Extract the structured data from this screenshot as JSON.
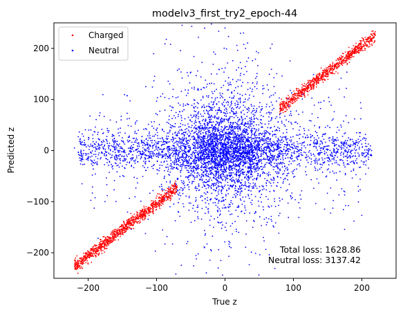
{
  "chart_data": {
    "type": "scatter",
    "title": "modelv3_first_try2_epoch-44",
    "xlabel": "True z",
    "ylabel": "Predicted z",
    "xlim": [
      -250,
      250
    ],
    "ylim": [
      -250,
      250
    ],
    "xticks": [
      -200,
      -100,
      0,
      100,
      200
    ],
    "yticks": [
      -200,
      -100,
      0,
      100,
      200
    ],
    "grid": false,
    "legend": {
      "placement": "top-left",
      "entries": [
        "Charged",
        "Neutral"
      ]
    },
    "series": [
      {
        "name": "Charged",
        "color": "#ff0000",
        "marker": "dot",
        "description_points": [
          [
            -215,
            -240
          ],
          [
            -200,
            -222
          ],
          [
            -185,
            -205
          ],
          [
            -170,
            -185
          ],
          [
            -160,
            -175
          ],
          [
            -150,
            -163
          ],
          [
            -140,
            -150
          ],
          [
            -130,
            -140
          ],
          [
            -120,
            -128
          ],
          [
            -110,
            -118
          ],
          [
            -100,
            -105
          ],
          [
            -90,
            -95
          ],
          [
            -80,
            -82
          ],
          [
            -70,
            -72
          ],
          [
            90,
            95
          ],
          [
            100,
            102
          ],
          [
            110,
            115
          ],
          [
            120,
            125
          ],
          [
            130,
            135
          ],
          [
            140,
            143
          ],
          [
            150,
            152
          ],
          [
            160,
            165
          ],
          [
            170,
            175
          ],
          [
            180,
            185
          ],
          [
            190,
            195
          ],
          [
            200,
            202
          ],
          [
            215,
            206
          ]
        ]
      },
      {
        "name": "Neutral",
        "color": "#0000ff",
        "marker": "dot",
        "description_points": [
          [
            -220,
            5
          ],
          [
            -200,
            10
          ],
          [
            -180,
            -5
          ],
          [
            -150,
            25
          ],
          [
            -120,
            -30
          ],
          [
            -100,
            40
          ],
          [
            -80,
            -60
          ],
          [
            -60,
            80
          ],
          [
            -40,
            -120
          ],
          [
            -20,
            150
          ],
          [
            0,
            0
          ],
          [
            20,
            -160
          ],
          [
            40,
            120
          ],
          [
            60,
            -90
          ],
          [
            80,
            70
          ],
          [
            100,
            -40
          ],
          [
            120,
            30
          ],
          [
            150,
            -20
          ],
          [
            180,
            10
          ],
          [
            200,
            -5
          ],
          [
            210,
            0
          ],
          [
            0,
            240
          ],
          [
            -10,
            -230
          ],
          [
            30,
            200
          ],
          [
            -30,
            -190
          ]
        ]
      }
    ],
    "annotations": [
      {
        "text": "Total loss: 1628.86"
      },
      {
        "text": "Neutral loss: 3137.42"
      }
    ]
  }
}
